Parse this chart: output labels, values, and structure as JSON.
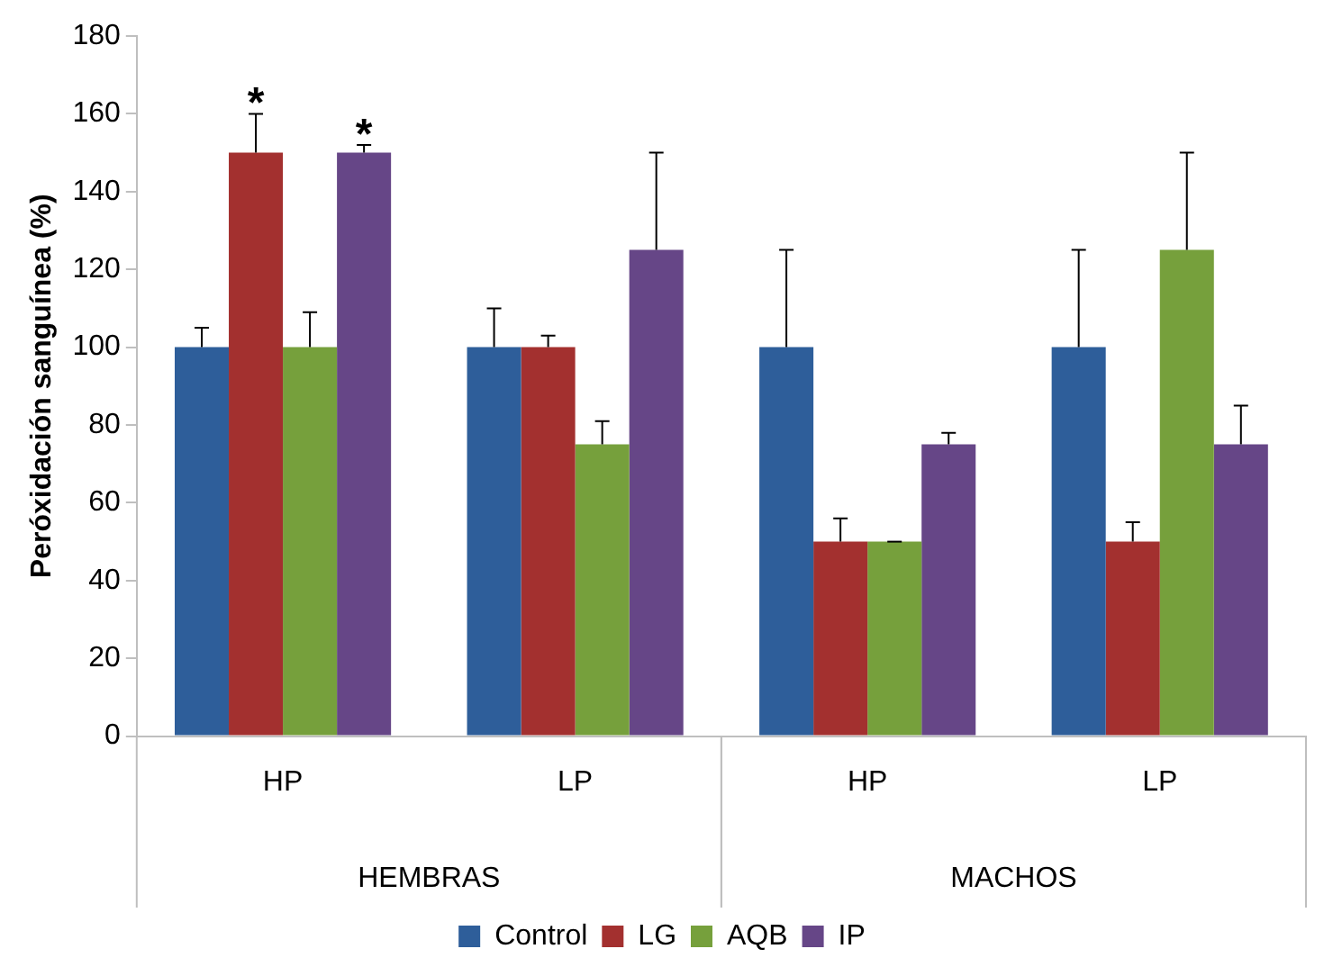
{
  "chart_data": {
    "type": "bar",
    "ylabel": "Peróxidación sanguínea (%)",
    "categories": [
      "HP",
      "LP",
      "HP",
      "LP"
    ],
    "annotations": [
      "HEMBRAS",
      "MACHOS"
    ],
    "ylim": [
      0,
      180
    ],
    "yticks": [
      0,
      20,
      40,
      60,
      80,
      100,
      120,
      140,
      160,
      180
    ],
    "grid": false,
    "legend": "bottom",
    "series": [
      {
        "name": "Control",
        "color": "#2e5e9a",
        "values": [
          100,
          100,
          100,
          100
        ],
        "errors": [
          [
            100,
            105
          ],
          [
            100,
            110
          ],
          [
            100,
            125
          ],
          [
            100,
            125
          ]
        ]
      },
      {
        "name": "LG",
        "color": "#a3302f",
        "values": [
          150,
          100,
          50,
          50
        ],
        "errors": [
          [
            150,
            160
          ],
          [
            100,
            103
          ],
          [
            50,
            56
          ],
          [
            50,
            55
          ]
        ],
        "value_labels": [
          "*",
          null,
          null,
          null
        ]
      },
      {
        "name": "AQB",
        "color": "#76a03c",
        "values": [
          100,
          75,
          50,
          125
        ],
        "errors": [
          [
            100,
            109
          ],
          [
            75,
            81
          ],
          [
            50,
            50
          ],
          [
            125,
            150
          ]
        ]
      },
      {
        "name": "IP",
        "color": "#664687",
        "values": [
          150,
          125,
          75,
          75
        ],
        "errors": [
          [
            150,
            152
          ],
          [
            125,
            150
          ],
          [
            75,
            78
          ],
          [
            75,
            85
          ]
        ],
        "value_labels": [
          "*",
          null,
          null,
          null
        ]
      }
    ]
  }
}
